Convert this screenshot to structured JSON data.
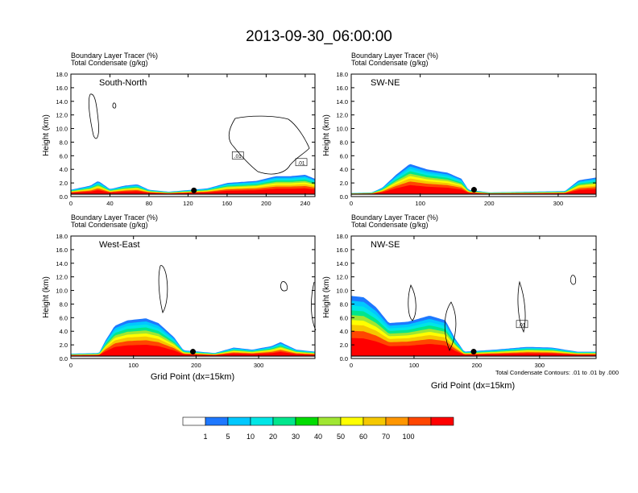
{
  "title": "2013-09-30_06:00:00",
  "labels": {
    "tracer": "Boundary Layer Tracer   (%)",
    "condensate": "Total Condensate   (g/kg)",
    "ylabel": "Height (km)",
    "xlabel": "Grid Point (dx=15km)",
    "contour_note": "Total Condensate Contours: .01 to .01 by .000"
  },
  "colors": {
    "levels": [
      "#ffffff",
      "#1e78ff",
      "#00c8ff",
      "#00e6e6",
      "#00e68c",
      "#00dc00",
      "#a0e632",
      "#ffff00",
      "#f5c800",
      "#ff9600",
      "#ff4600",
      "#ff0000"
    ],
    "frame": "#000000",
    "contour": "#000000"
  },
  "colorbar": {
    "labels": [
      "1",
      "5",
      "10",
      "20",
      "30",
      "40",
      "50",
      "60",
      "70",
      "100"
    ]
  },
  "chart_data": [
    {
      "type": "contour",
      "panel_label": "South-North",
      "xlim": [
        0,
        250
      ],
      "xticks": [
        "0",
        "40",
        "80",
        "120",
        "160",
        "200",
        "240"
      ],
      "ylim": [
        0,
        18
      ],
      "yticks": [
        "0.0",
        "2.0",
        "4.0",
        "6.0",
        "8.0",
        "10.0",
        "12.0",
        "14.0",
        "16.0",
        "18.0"
      ],
      "marker": {
        "x": 126,
        "y": 0.9
      },
      "contour_labels": [
        {
          "text": ".01",
          "x": 171,
          "y": 6.0
        },
        {
          "text": ".01",
          "x": 236,
          "y": 5.0
        }
      ],
      "tracer_profile": [
        [
          0,
          1.0
        ],
        [
          20,
          1.6
        ],
        [
          28,
          2.3
        ],
        [
          40,
          1.1
        ],
        [
          55,
          1.6
        ],
        [
          68,
          1.8
        ],
        [
          80,
          1.0
        ],
        [
          100,
          0.7
        ],
        [
          140,
          1.2
        ],
        [
          160,
          2.0
        ],
        [
          190,
          2.3
        ],
        [
          210,
          3.0
        ],
        [
          225,
          3.0
        ],
        [
          240,
          3.2
        ],
        [
          250,
          2.6
        ]
      ]
    },
    {
      "type": "contour",
      "panel_label": "SW-NE",
      "xlim": [
        0,
        355
      ],
      "xticks": [
        "0",
        "100",
        "200",
        "300"
      ],
      "ylim": [
        0,
        18
      ],
      "yticks": [
        "0.0",
        "2.0",
        "4.0",
        "6.0",
        "8.0",
        "10.0",
        "12.0",
        "14.0",
        "16.0",
        "18.0"
      ],
      "marker": {
        "x": 178,
        "y": 1.0
      },
      "contour_labels": [],
      "tracer_profile": [
        [
          0,
          0.5
        ],
        [
          30,
          0.6
        ],
        [
          45,
          1.3
        ],
        [
          65,
          3.2
        ],
        [
          85,
          4.8
        ],
        [
          110,
          4.0
        ],
        [
          140,
          3.5
        ],
        [
          160,
          2.6
        ],
        [
          170,
          1.0
        ],
        [
          200,
          0.6
        ],
        [
          310,
          0.8
        ],
        [
          330,
          2.4
        ],
        [
          355,
          2.8
        ]
      ]
    },
    {
      "type": "contour",
      "panel_label": "West-East",
      "xlim": [
        0,
        390
      ],
      "xticks": [
        "0",
        "100",
        "200",
        "300"
      ],
      "ylim": [
        0,
        18
      ],
      "yticks": [
        "0.0",
        "2.0",
        "4.0",
        "6.0",
        "8.0",
        "10.0",
        "12.0",
        "14.0",
        "16.0",
        "18.0"
      ],
      "marker": {
        "x": 195,
        "y": 1.0
      },
      "contour_labels": [],
      "tracer_profile": [
        [
          0,
          0.7
        ],
        [
          45,
          0.8
        ],
        [
          55,
          2.6
        ],
        [
          70,
          4.8
        ],
        [
          90,
          5.6
        ],
        [
          120,
          5.9
        ],
        [
          140,
          5.2
        ],
        [
          165,
          3.1
        ],
        [
          180,
          1.2
        ],
        [
          230,
          0.8
        ],
        [
          260,
          1.6
        ],
        [
          290,
          1.3
        ],
        [
          320,
          1.8
        ],
        [
          335,
          2.4
        ],
        [
          360,
          1.3
        ],
        [
          390,
          1.0
        ]
      ]
    },
    {
      "type": "contour",
      "panel_label": "NW-SE",
      "xlim": [
        0,
        390
      ],
      "xticks": [
        "0",
        "100",
        "200",
        "300"
      ],
      "ylim": [
        0,
        18
      ],
      "yticks": [
        "0.0",
        "2.0",
        "4.0",
        "6.0",
        "8.0",
        "10.0",
        "12.0",
        "14.0",
        "16.0",
        "18.0"
      ],
      "marker": {
        "x": 195,
        "y": 1.0
      },
      "contour_labels": [
        {
          "text": ".01",
          "x": 272,
          "y": 5.0
        }
      ],
      "tracer_profile": [
        [
          0,
          9.2
        ],
        [
          20,
          9.0
        ],
        [
          40,
          7.5
        ],
        [
          60,
          5.2
        ],
        [
          90,
          5.4
        ],
        [
          125,
          6.3
        ],
        [
          150,
          5.6
        ],
        [
          165,
          3.0
        ],
        [
          180,
          1.0
        ],
        [
          230,
          1.3
        ],
        [
          280,
          1.7
        ],
        [
          320,
          1.6
        ],
        [
          360,
          1.0
        ],
        [
          390,
          1.0
        ]
      ]
    }
  ]
}
